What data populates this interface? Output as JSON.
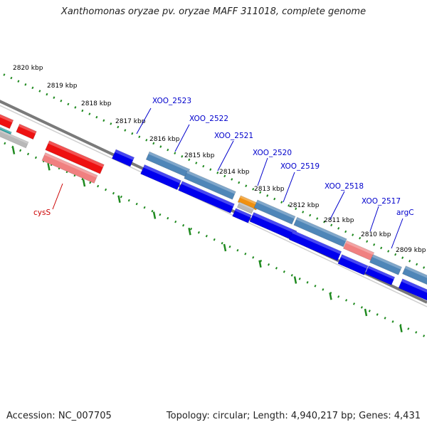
{
  "title": "Xanthomonas oryzae pv. oryzae MAFF 311018, complete genome",
  "footer": {
    "accession": "Accession: NC_007705",
    "topology": "Topology: circular; Length: 4,940,217 bp; Genes: 4,431"
  },
  "colors": {
    "backbone": "#7a7a7a",
    "tick_dots": "#1f8a1f",
    "gene_blue": "#0000ee",
    "gene_steel": "#4f86b8",
    "gene_red": "#ee1111",
    "gene_pink": "#f08080",
    "gene_orange": "#f09010",
    "gene_grey": "#b8b8b8",
    "gene_teal": "#20a0a0",
    "label_blue": "#0000cc",
    "label_red": "#cc0000"
  },
  "scale_labels": [
    "2820 kbp",
    "2819 kbp",
    "2818 kbp",
    "2817 kbp",
    "2816 kbp",
    "2815 kbp",
    "2814 kbp",
    "2813 kbp",
    "2812 kbp",
    "2811 kbp",
    "2810 kbp",
    "2809 kbp"
  ],
  "gene_labels": [
    {
      "text": "XOO_2523",
      "color": "blue"
    },
    {
      "text": "XOO_2522",
      "color": "blue"
    },
    {
      "text": "XOO_2521",
      "color": "blue"
    },
    {
      "text": "XOO_2520",
      "color": "blue"
    },
    {
      "text": "XOO_2519",
      "color": "blue"
    },
    {
      "text": "XOO_2518",
      "color": "blue"
    },
    {
      "text": "XOO_2517",
      "color": "blue"
    },
    {
      "text": "argC",
      "color": "blue"
    },
    {
      "text": "cysS",
      "color": "red"
    }
  ]
}
